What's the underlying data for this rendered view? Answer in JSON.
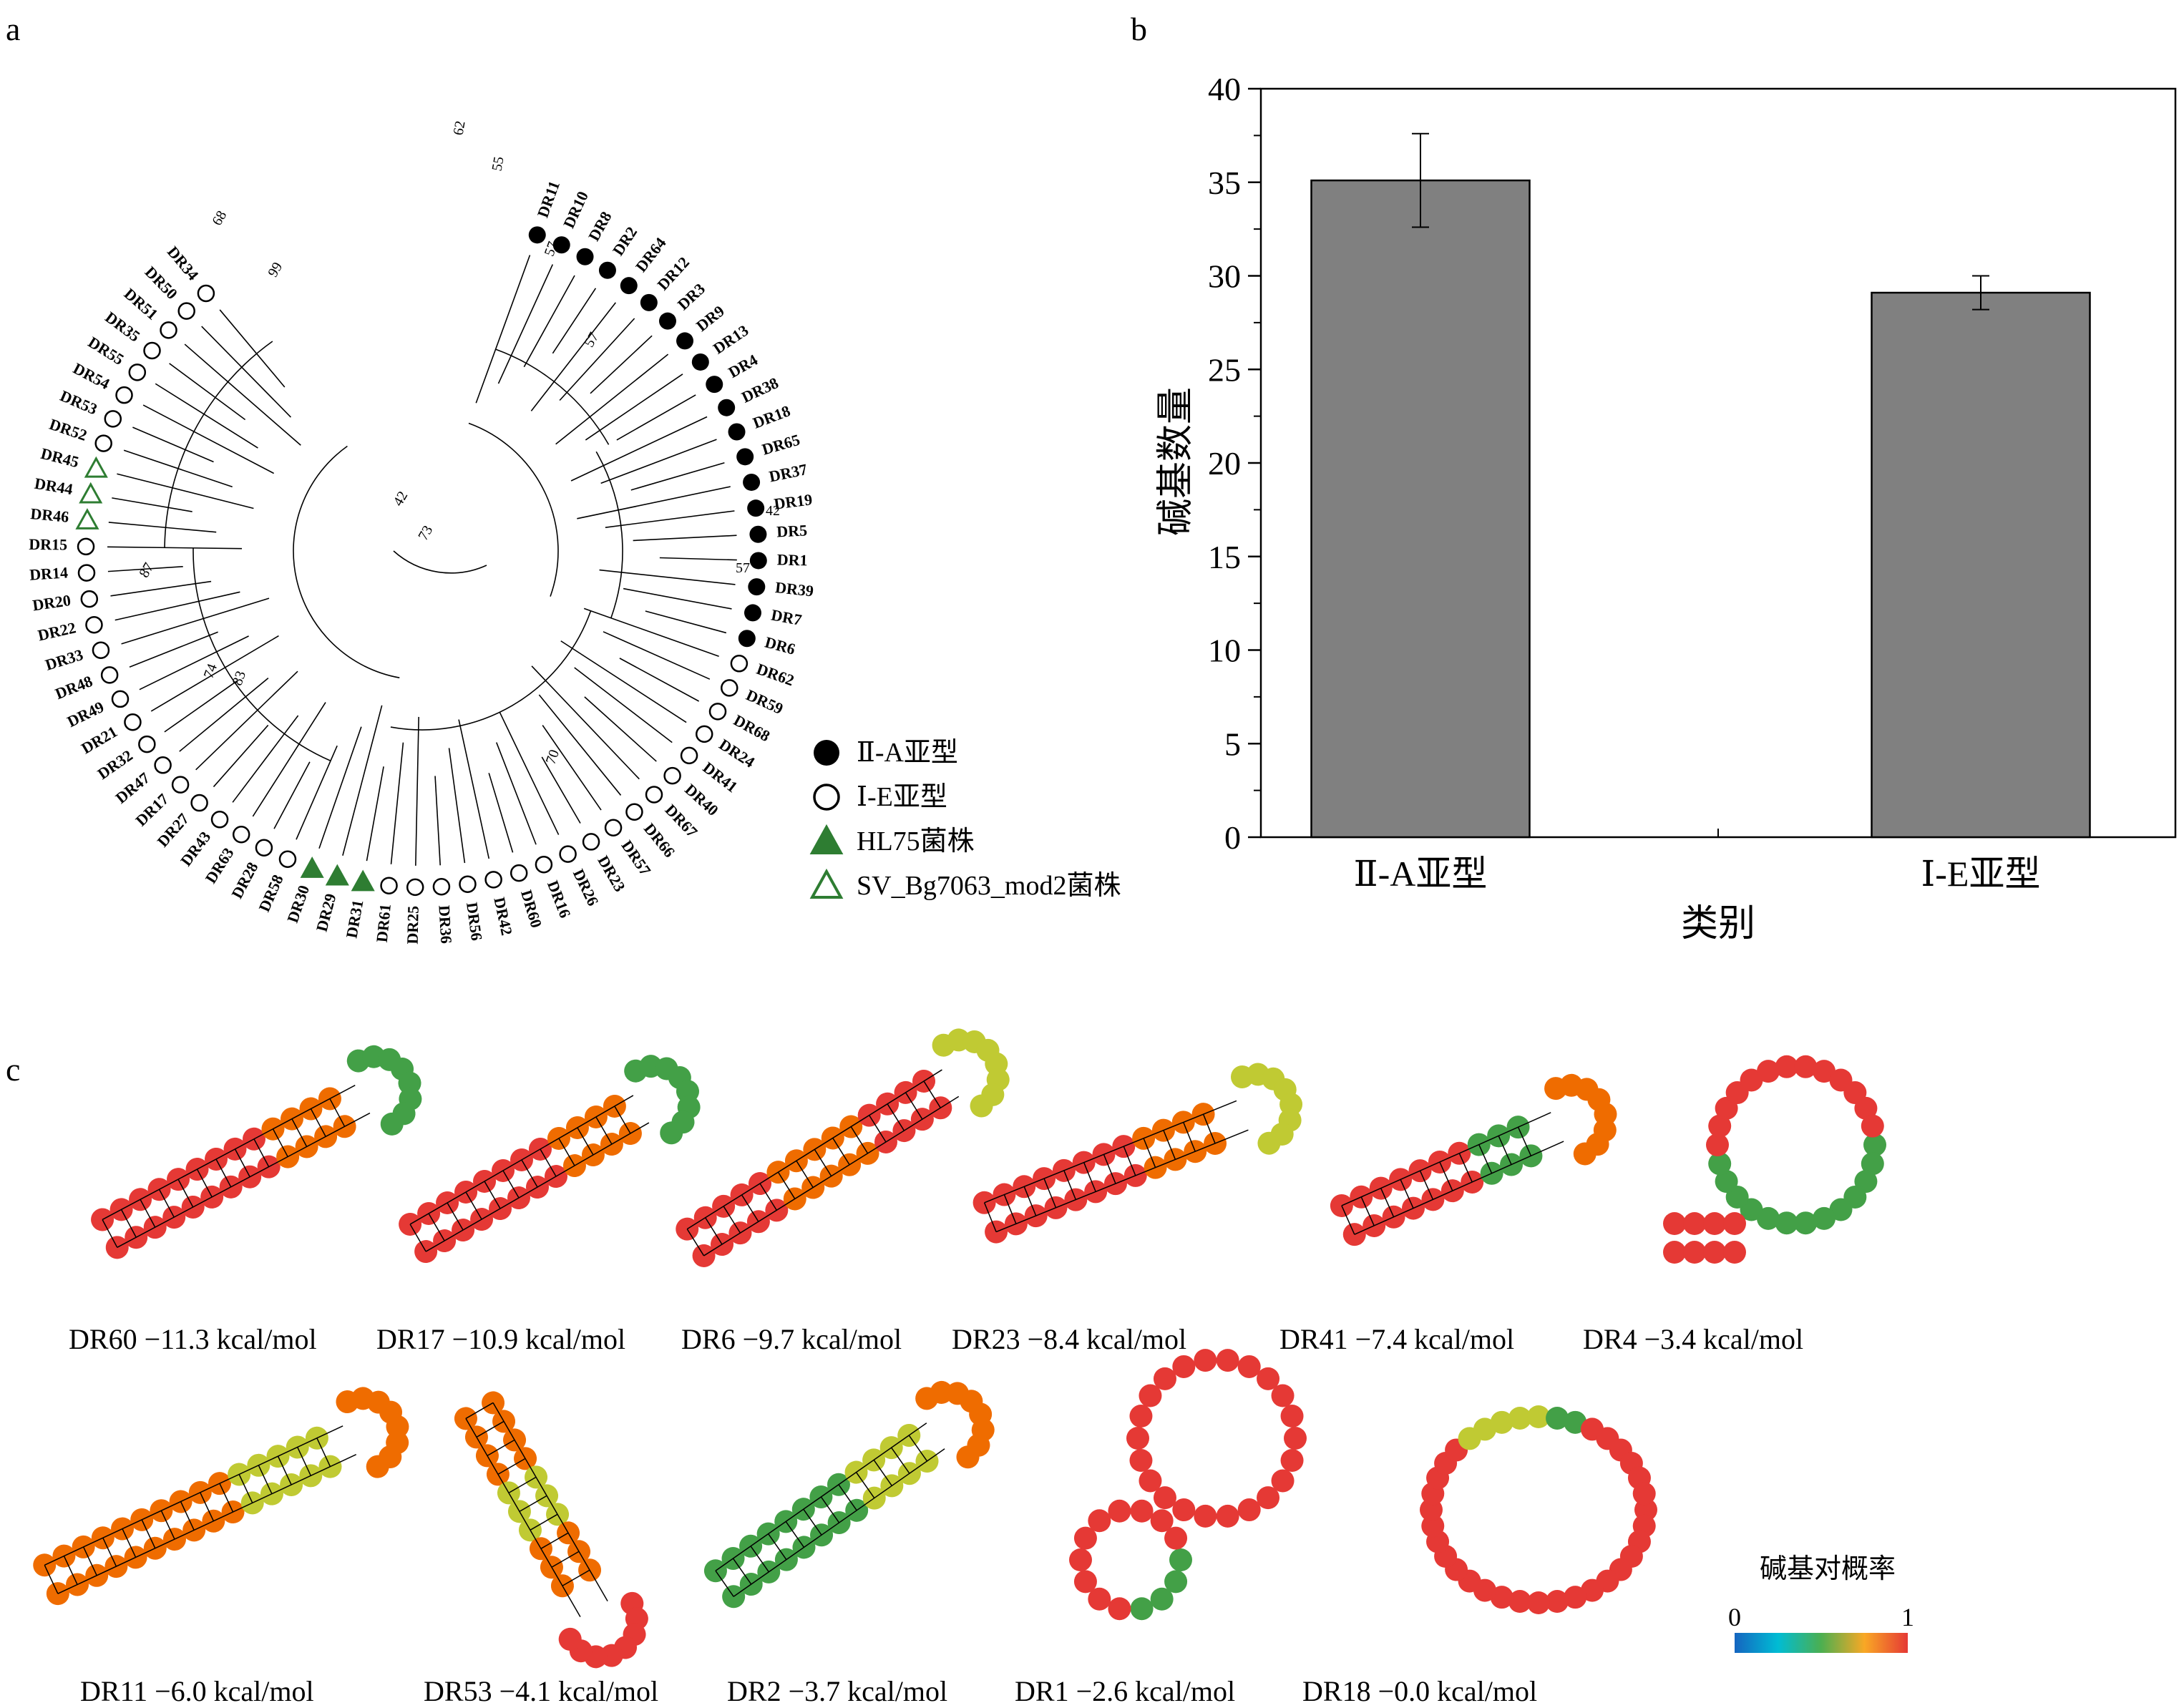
{
  "panels": {
    "a": "a",
    "b": "b",
    "c": "c"
  },
  "tree": {
    "labels": [
      "DR11",
      "DR10",
      "DR8",
      "DR2",
      "DR64",
      "DR12",
      "DR3",
      "DR9",
      "DR13",
      "DR4",
      "DR38",
      "DR18",
      "DR65",
      "DR37",
      "DR19",
      "DR5",
      "DR1",
      "DR39",
      "DR7",
      "DR6",
      "DR62",
      "DR59",
      "DR68",
      "DR24",
      "DR41",
      "DR40",
      "DR67",
      "DR66",
      "DR57",
      "DR23",
      "DR26",
      "DR16",
      "DR60",
      "DR42",
      "DR56",
      "DR36",
      "DR25",
      "DR61",
      "DR31",
      "DR29",
      "DR30",
      "DR58",
      "DR28",
      "DR63",
      "DR43",
      "DR27",
      "DR17",
      "DR47",
      "DR32",
      "DR21",
      "DR49",
      "DR48",
      "DR33",
      "DR22",
      "DR20",
      "DR14",
      "DR15",
      "DR46",
      "DR44",
      "DR45",
      "DR52",
      "DR53",
      "DR54",
      "DR55",
      "DR35",
      "DR51",
      "DR50",
      "DR34"
    ],
    "types": [
      "A",
      "A",
      "A",
      "A",
      "A",
      "A",
      "A",
      "A",
      "A",
      "A",
      "A",
      "A",
      "A",
      "A",
      "A",
      "A",
      "A",
      "A",
      "A",
      "A",
      "E",
      "E",
      "E",
      "E",
      "E",
      "E",
      "E",
      "E",
      "E",
      "E",
      "E",
      "E",
      "E",
      "E",
      "E",
      "E",
      "E",
      "E",
      "H",
      "H",
      "H",
      "E",
      "E",
      "E",
      "E",
      "E",
      "E",
      "E",
      "E",
      "E",
      "E",
      "E",
      "E",
      "E",
      "E",
      "E",
      "E",
      "S",
      "S",
      "S",
      "E",
      "E",
      "E",
      "E",
      "E",
      "E",
      "E",
      "E"
    ],
    "bootstrap": [
      "62",
      "55",
      "57",
      "57",
      "42",
      "57",
      "42",
      "73",
      "99",
      "68",
      "87",
      "74",
      "83",
      "70"
    ],
    "legend": [
      {
        "key": "A",
        "label": "Ⅱ-A亚型"
      },
      {
        "key": "E",
        "label": "Ⅰ-E亚型"
      },
      {
        "key": "H",
        "label": "HL75菌株"
      },
      {
        "key": "S",
        "label": "SV_Bg7063_mod2菌株"
      }
    ],
    "colors": {
      "filled": "#000000",
      "green": "#2e7d32"
    }
  },
  "chart_data": {
    "type": "bar",
    "categories": [
      "Ⅱ-A亚型",
      "Ⅰ-E亚型"
    ],
    "values": [
      35.1,
      29.1
    ],
    "errors": [
      2.5,
      0.9
    ],
    "xlabel": "类别",
    "ylabel": "碱基数量",
    "ylim": [
      0,
      40
    ],
    "yticks": [
      0,
      5,
      10,
      15,
      20,
      25,
      30,
      35,
      40
    ],
    "bar_color": "#808080"
  },
  "structures": {
    "captions": [
      "DR60 −11.3 kcal/mol",
      "DR17 −10.9 kcal/mol",
      "DR6 −9.7 kcal/mol",
      "DR23 −8.4 kcal/mol",
      "DR41 −7.4 kcal/mol",
      "DR4 −3.4 kcal/mol",
      "DR11 −6.0 kcal/mol",
      "DR53 −4.1 kcal/mol",
      "DR2 −3.7 kcal/mol",
      "DR1 −2.6 kcal/mol",
      "DR18 −0.0 kcal/mol"
    ],
    "colorbar": {
      "title": "碱基对概率",
      "min": "0",
      "max": "1"
    }
  }
}
